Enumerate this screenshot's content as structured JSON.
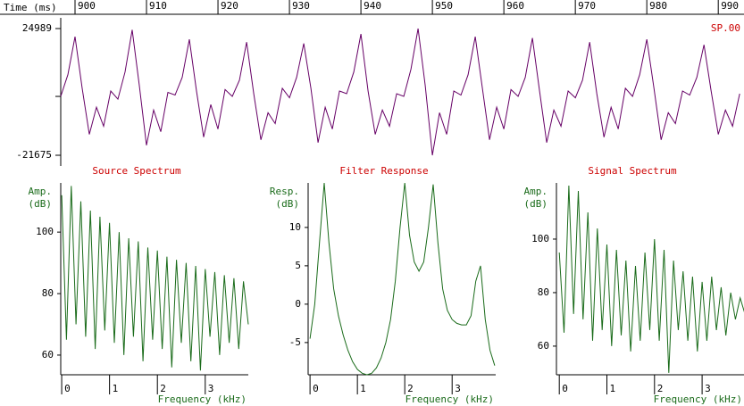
{
  "chart_data": [
    {
      "type": "line",
      "xlabel": "Time (ms)",
      "label": "SP.00",
      "color": "#660066",
      "xlim": [
        898,
        993.6
      ],
      "xticks": [
        900,
        910,
        920,
        930,
        940,
        950,
        960,
        970,
        980,
        990
      ],
      "ylim": [
        -21675,
        24989
      ],
      "yticks": [
        -21675,
        24989
      ],
      "x": [
        898,
        899,
        900,
        901,
        902,
        903,
        904,
        905,
        906,
        907,
        908,
        909,
        910,
        911,
        912,
        913,
        914,
        915,
        916,
        917,
        918,
        919,
        920,
        921,
        922,
        923,
        924,
        925,
        926,
        927,
        928,
        929,
        930,
        931,
        932,
        933,
        934,
        935,
        936,
        937,
        938,
        939,
        940,
        941,
        942,
        943,
        944,
        945,
        946,
        947,
        948,
        949,
        950,
        951,
        952,
        953,
        954,
        955,
        956,
        957,
        958,
        959,
        960,
        961,
        962,
        963,
        964,
        965,
        966,
        967,
        968,
        969,
        970,
        971,
        972,
        973,
        974,
        975,
        976,
        977,
        978,
        979,
        980,
        981,
        982,
        983,
        984,
        985,
        986,
        987,
        988,
        989,
        990,
        991,
        992,
        993
      ],
      "values": [
        0,
        8000,
        22000,
        3000,
        -14000,
        -4000,
        -11000,
        2000,
        -1000,
        9000,
        24500,
        4000,
        -18000,
        -5000,
        -13000,
        1500,
        500,
        7000,
        21000,
        2000,
        -15000,
        -3000,
        -12000,
        2500,
        0,
        6000,
        20000,
        1000,
        -16000,
        -6000,
        -10000,
        3000,
        -500,
        7000,
        19500,
        3000,
        -17000,
        -4000,
        -12000,
        2000,
        1000,
        9000,
        23000,
        2000,
        -14000,
        -5000,
        -11000,
        1000,
        0,
        10000,
        24989,
        4000,
        -21675,
        -6000,
        -14000,
        2000,
        500,
        8000,
        22000,
        3000,
        -16000,
        -4000,
        -12000,
        2500,
        0,
        7000,
        21500,
        2000,
        -17000,
        -5000,
        -11000,
        2000,
        -500,
        6000,
        20000,
        1000,
        -15000,
        -4000,
        -12000,
        3000,
        0,
        8000,
        21000,
        3000,
        -16000,
        -6000,
        -10000,
        2000,
        500,
        7000,
        19000,
        2000,
        -14000,
        -5000,
        -11000,
        1000
      ]
    },
    {
      "type": "line",
      "title": "Source Spectrum",
      "ylabel": [
        "Amp.",
        "(dB)"
      ],
      "xlabel": "Frequency (kHz)",
      "color": "#1a6b1a",
      "xlim": [
        -0.02,
        3.9
      ],
      "xticks": [
        0,
        1,
        2,
        3
      ],
      "ylim": [
        53.6,
        116
      ],
      "yticks": [
        60,
        80,
        100
      ],
      "x": [
        0,
        0.1,
        0.2,
        0.3,
        0.4,
        0.5,
        0.6,
        0.7,
        0.8,
        0.9,
        1,
        1.1,
        1.2,
        1.3,
        1.4,
        1.5,
        1.6,
        1.7,
        1.8,
        1.9,
        2,
        2.1,
        2.2,
        2.3,
        2.4,
        2.5,
        2.6,
        2.7,
        2.8,
        2.9,
        3,
        3.1,
        3.2,
        3.3,
        3.4,
        3.5,
        3.6,
        3.7,
        3.8,
        3.9
      ],
      "values": [
        112,
        65,
        115,
        70,
        110,
        66,
        107,
        62,
        105,
        68,
        103,
        64,
        100,
        60,
        98,
        66,
        97,
        58,
        95,
        65,
        94,
        62,
        92,
        56,
        91,
        64,
        90,
        58,
        89,
        55,
        88,
        66,
        87,
        60,
        86,
        64,
        85,
        62,
        84,
        70
      ]
    },
    {
      "type": "line",
      "title": "Filter Response",
      "ylabel": [
        "Resp.",
        "(dB)"
      ],
      "xlabel": "Frequency (kHz)",
      "color": "#1a6b1a",
      "xlim": [
        -0.04,
        3.92
      ],
      "xticks": [
        0,
        1,
        2,
        3
      ],
      "ylim": [
        -9.2,
        15.8
      ],
      "yticks": [
        -5,
        0,
        5,
        10
      ],
      "x": [
        0,
        0.1,
        0.2,
        0.3,
        0.4,
        0.5,
        0.6,
        0.7,
        0.8,
        0.9,
        1,
        1.1,
        1.2,
        1.3,
        1.4,
        1.5,
        1.6,
        1.7,
        1.8,
        1.9,
        2,
        2.1,
        2.2,
        2.3,
        2.4,
        2.5,
        2.6,
        2.7,
        2.8,
        2.9,
        3,
        3.1,
        3.2,
        3.3,
        3.4,
        3.5,
        3.6,
        3.7,
        3.8,
        3.9
      ],
      "values": [
        -4.5,
        0,
        8,
        15.8,
        8,
        2,
        -1.5,
        -4,
        -6,
        -7.5,
        -8.5,
        -9,
        -9.2,
        -9,
        -8.3,
        -7,
        -5,
        -2,
        3,
        10,
        15.8,
        9,
        5.5,
        4.3,
        5.5,
        10,
        15.6,
        8,
        2,
        -0.8,
        -2,
        -2.5,
        -2.7,
        -2.7,
        -1.5,
        3,
        5,
        -2,
        -6,
        -8
      ]
    },
    {
      "type": "line",
      "title": "Signal Spectrum",
      "ylabel": [
        "Amp.",
        "(dB)"
      ],
      "xlabel": "Frequency (kHz)",
      "color": "#1a6b1a",
      "xlim": [
        -0.06,
        3.88
      ],
      "xticks": [
        0,
        1,
        2,
        3
      ],
      "ylim": [
        49.3,
        121
      ],
      "yticks": [
        60,
        80,
        100
      ],
      "x": [
        0,
        0.1,
        0.2,
        0.3,
        0.4,
        0.5,
        0.6,
        0.7,
        0.8,
        0.9,
        1,
        1.1,
        1.2,
        1.3,
        1.4,
        1.5,
        1.6,
        1.7,
        1.8,
        1.9,
        2,
        2.1,
        2.2,
        2.3,
        2.4,
        2.5,
        2.6,
        2.7,
        2.8,
        2.9,
        3,
        3.1,
        3.2,
        3.3,
        3.4,
        3.5,
        3.6,
        3.7,
        3.8,
        3.9
      ],
      "values": [
        95,
        65,
        120,
        72,
        118,
        70,
        110,
        62,
        104,
        66,
        98,
        60,
        96,
        64,
        92,
        58,
        90,
        62,
        95,
        66,
        100,
        62,
        96,
        50,
        92,
        66,
        88,
        62,
        86,
        58,
        84,
        62,
        86,
        66,
        82,
        64,
        80,
        70,
        78,
        72
      ]
    }
  ]
}
